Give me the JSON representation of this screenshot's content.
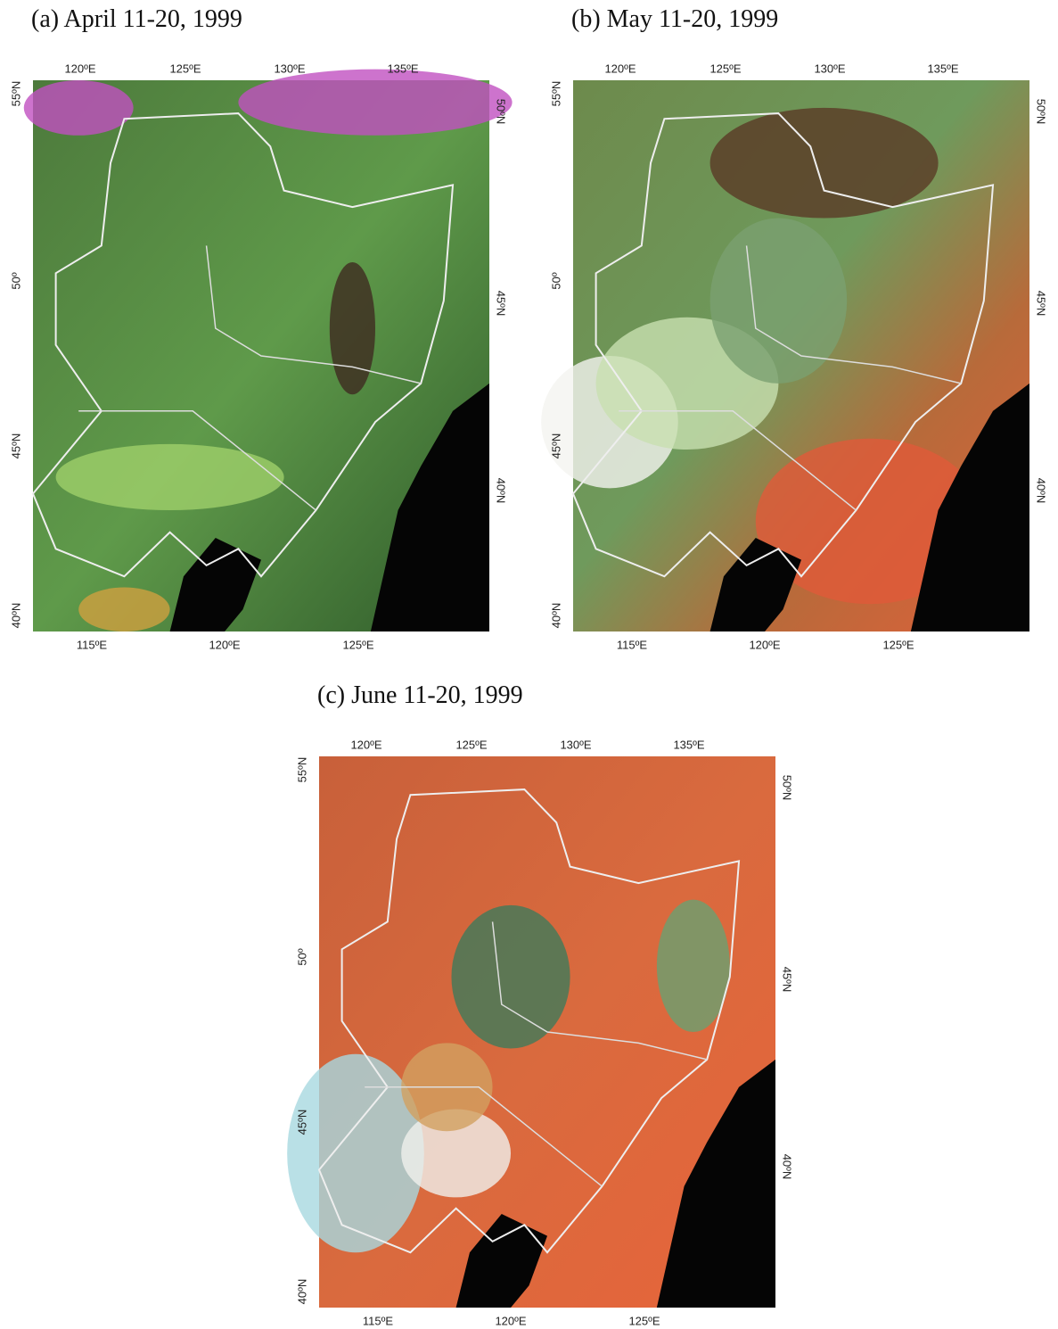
{
  "panels": [
    {
      "title": "(a) April 11-20, 1999",
      "top_labels": [
        "120ºE",
        "125ºE",
        "130ºE",
        "135ºE"
      ],
      "left_labels": [
        "55ºN",
        "50º",
        "45ºN",
        "40ºN"
      ],
      "right_labels": [
        "50ºN",
        "45ºN",
        "40ºN"
      ],
      "bottom_labels": [
        "115ºE",
        "120ºE",
        "125ºE"
      ]
    },
    {
      "title": "(b) May 11-20, 1999",
      "top_labels": [
        "120ºE",
        "125ºE",
        "130ºE",
        "135ºE"
      ],
      "left_labels": [
        "55ºN",
        "50º",
        "45ºN",
        "40ºN"
      ],
      "right_labels": [
        "50ºN",
        "45ºN",
        "40ºN"
      ],
      "bottom_labels": [
        "115ºE",
        "120ºE",
        "125ºE"
      ]
    },
    {
      "title": "(c) June 11-20, 1999",
      "top_labels": [
        "120ºE",
        "125ºE",
        "130ºE",
        "135ºE"
      ],
      "left_labels": [
        "55ºN",
        "50º",
        "45ºN",
        "40ºN"
      ],
      "right_labels": [
        "50ºN",
        "45ºN",
        "40ºN"
      ],
      "bottom_labels": [
        "115ºE",
        "120ºE",
        "125ºE"
      ]
    }
  ]
}
